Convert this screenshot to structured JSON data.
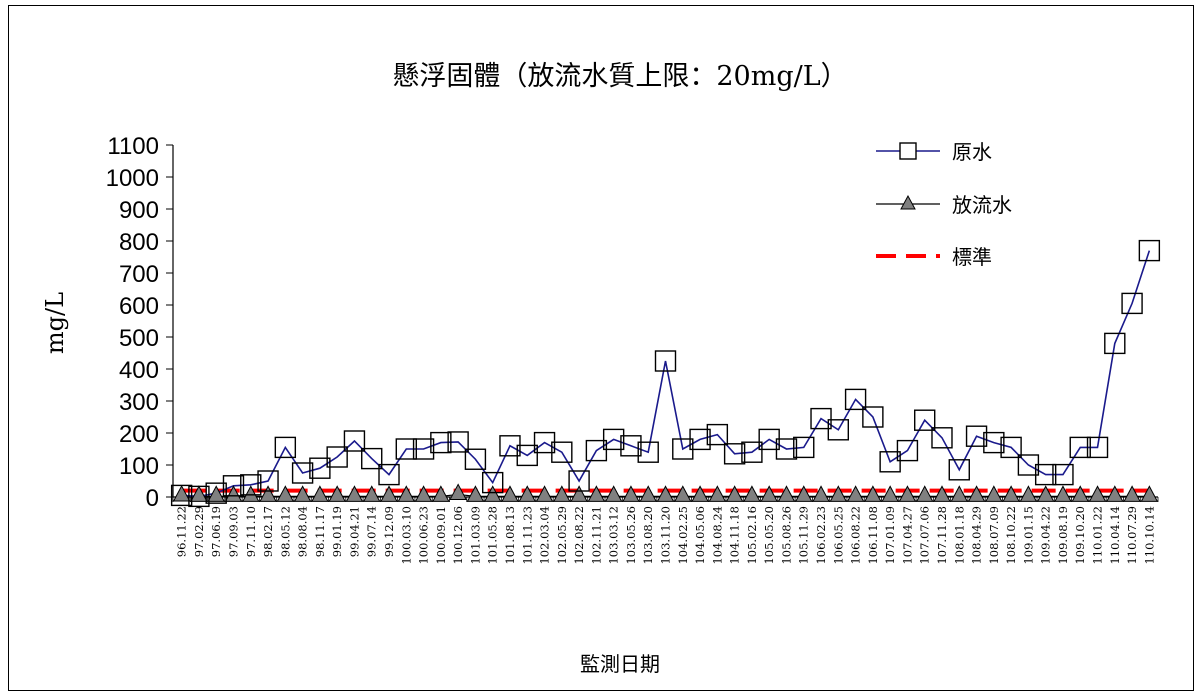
{
  "chart_data": {
    "type": "line",
    "title": "懸浮固體（放流水質上限：20mg/L）",
    "xlabel": "監測日期",
    "ylabel": "mg/L",
    "ylim": [
      0,
      1100
    ],
    "yticks": [
      0,
      100,
      200,
      300,
      400,
      500,
      600,
      700,
      800,
      900,
      1000,
      1100
    ],
    "grid": false,
    "legend_position": "top-right",
    "categories": [
      "96.11.22",
      "97.02.29",
      "97.06.19",
      "97.09.03",
      "97.11.10",
      "98.02.17",
      "98.05.12",
      "98.08.04",
      "98.11.17",
      "99.01.19",
      "99.04.21",
      "99.07.14",
      "99.12.09",
      "100.03.10",
      "100.06.23",
      "100.09.01",
      "100.12.06",
      "101.03.09",
      "101.05.28",
      "101.08.13",
      "101.11.23",
      "102.03.04",
      "102.05.29",
      "102.08.22",
      "102.11.21",
      "103.03.12",
      "103.05.26",
      "103.08.20",
      "103.11.20",
      "104.02.25",
      "104.05.06",
      "104.08.24",
      "104.11.18",
      "105.02.16",
      "105.05.20",
      "105.08.26",
      "105.11.29",
      "106.02.23",
      "106.05.25",
      "106.08.22",
      "106.11.08",
      "107.01.09",
      "107.04.27",
      "107.07.06",
      "107.11.28",
      "108.01.18",
      "108.04.29",
      "108.07.09",
      "108.10.22",
      "109.01.15",
      "109.04.22",
      "109.08.19",
      "109.10.20",
      "110.01.22",
      "110.04.14",
      "110.07.29",
      "110.10.14"
    ],
    "series": [
      {
        "name": "原水",
        "color": "#1a1a8c",
        "marker": "square",
        "values": [
          5,
          2,
          12,
          35,
          38,
          50,
          155,
          75,
          90,
          125,
          175,
          120,
          70,
          150,
          150,
          170,
          172,
          118,
          45,
          160,
          130,
          170,
          140,
          50,
          145,
          180,
          160,
          140,
          425,
          150,
          180,
          195,
          135,
          140,
          180,
          150,
          155,
          245,
          210,
          305,
          250,
          110,
          145,
          240,
          185,
          85,
          190,
          170,
          155,
          100,
          70,
          70,
          155,
          155,
          480,
          605,
          770
        ]
      },
      {
        "name": "放流水",
        "color": "#000000",
        "marker": "triangle",
        "values": [
          3,
          2,
          2,
          2,
          2,
          2,
          2,
          2,
          2,
          2,
          2,
          2,
          2,
          2,
          2,
          2,
          8,
          2,
          2,
          2,
          2,
          2,
          2,
          2,
          2,
          2,
          2,
          2,
          2,
          2,
          2,
          2,
          2,
          2,
          2,
          2,
          2,
          2,
          2,
          2,
          2,
          2,
          2,
          2,
          2,
          2,
          2,
          2,
          2,
          2,
          2,
          2,
          2,
          2,
          2,
          2,
          2
        ]
      },
      {
        "name": "標準",
        "color": "#ff0000",
        "marker": "none",
        "dashed": true,
        "constant": 20
      }
    ]
  }
}
